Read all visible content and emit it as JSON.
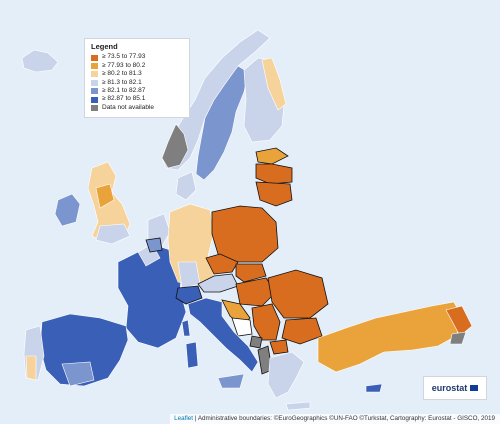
{
  "legend": {
    "title": "Legend",
    "items": [
      {
        "label": "≥ 73.5 to 77.93",
        "color": "#d86d1f"
      },
      {
        "label": "≥ 77.93 to 80.2",
        "color": "#e9a33a"
      },
      {
        "label": "≥ 80.2 to 81.3",
        "color": "#f6d39a"
      },
      {
        "label": "≥ 81.3 to 82.1",
        "color": "#c9d3ea"
      },
      {
        "label": "≥ 82.1 to 82.87",
        "color": "#7b95cf"
      },
      {
        "label": "≥ 82.87 to 85.1",
        "color": "#3a5fb7"
      },
      {
        "label": "Data not available",
        "color": "#7f7f7f"
      }
    ]
  },
  "logo": {
    "text": "eurostat"
  },
  "attribution": {
    "link": "Leaflet",
    "rest": " | Administrative boundaries: ©EuroGeographics ©UN-FAO ©Turkstat, Cartography: Eurostat - GISCO, 2019"
  },
  "colors": {
    "sea": "#e3eef9",
    "outside": "#ffffff",
    "boundary": "#111111"
  }
}
